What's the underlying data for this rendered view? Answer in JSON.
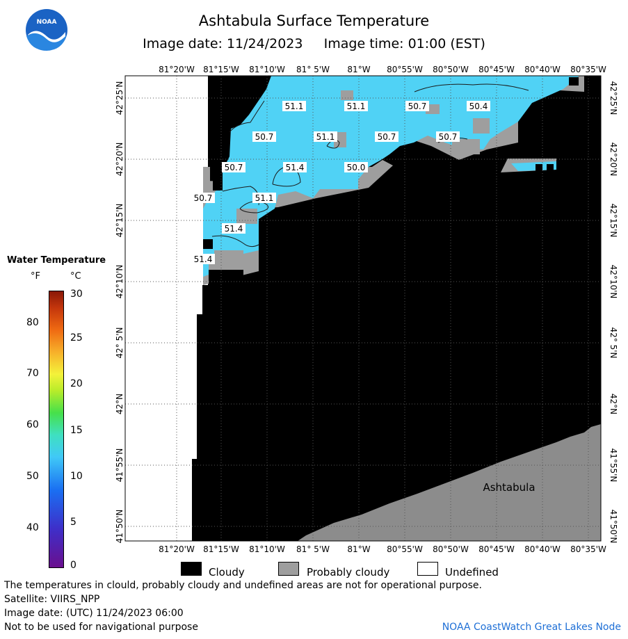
{
  "header": {
    "title": "Ashtabula Surface Temperature",
    "subtitle": "Image date: 11/24/2023     Image time: 01:00 (EST)"
  },
  "logo": {
    "text": "NOAA"
  },
  "map": {
    "lon_labels": [
      "81°20'W",
      "81°15'W",
      "81°10'W",
      "81° 5'W",
      "81°W",
      "80°55'W",
      "80°50'W",
      "80°45'W",
      "80°40'W",
      "80°35'W"
    ],
    "lat_labels": [
      "42°25'N",
      "42°20'N",
      "42°15'N",
      "42°10'N",
      "42° 5'N",
      "42°N",
      "41°55'N",
      "41°50'N"
    ],
    "temperature_labels": [
      "51.1",
      "51.1",
      "50.7",
      "50.4",
      "50.7",
      "51.1",
      "50.7",
      "50.7",
      "50.7",
      "51.4",
      "50.0",
      "50.7",
      "51.1",
      "51.4",
      "51.4"
    ],
    "place_label": "Ashtabula",
    "colors": {
      "cloud": "#000000",
      "probably_cloudy": "#9e9e9e",
      "undefined": "#ffffff",
      "water_50F": "#50d2f5",
      "land": "#8c8c8c"
    }
  },
  "legend": {
    "title": "Water Temperature",
    "unit_f": "°F",
    "unit_c": "°C",
    "f_ticks": [
      "80",
      "70",
      "60",
      "50",
      "40"
    ],
    "c_ticks": [
      "30",
      "25",
      "20",
      "15",
      "10",
      "5",
      "0"
    ]
  },
  "key": {
    "cloudy": "Cloudy",
    "probably_cloudy": "Probably cloudy",
    "undefined": "Undefined"
  },
  "footer": {
    "line1": "The temperatures in clould, probably cloudy and undefined areas are not for operational purpose.",
    "line2": "Satellite: VIIRS_NPP",
    "line3": "Image date: (UTC) 11/24/2023  06:00",
    "line4": "Not to be used for navigational purpose",
    "credit": "NOAA CoastWatch Great Lakes Node"
  }
}
